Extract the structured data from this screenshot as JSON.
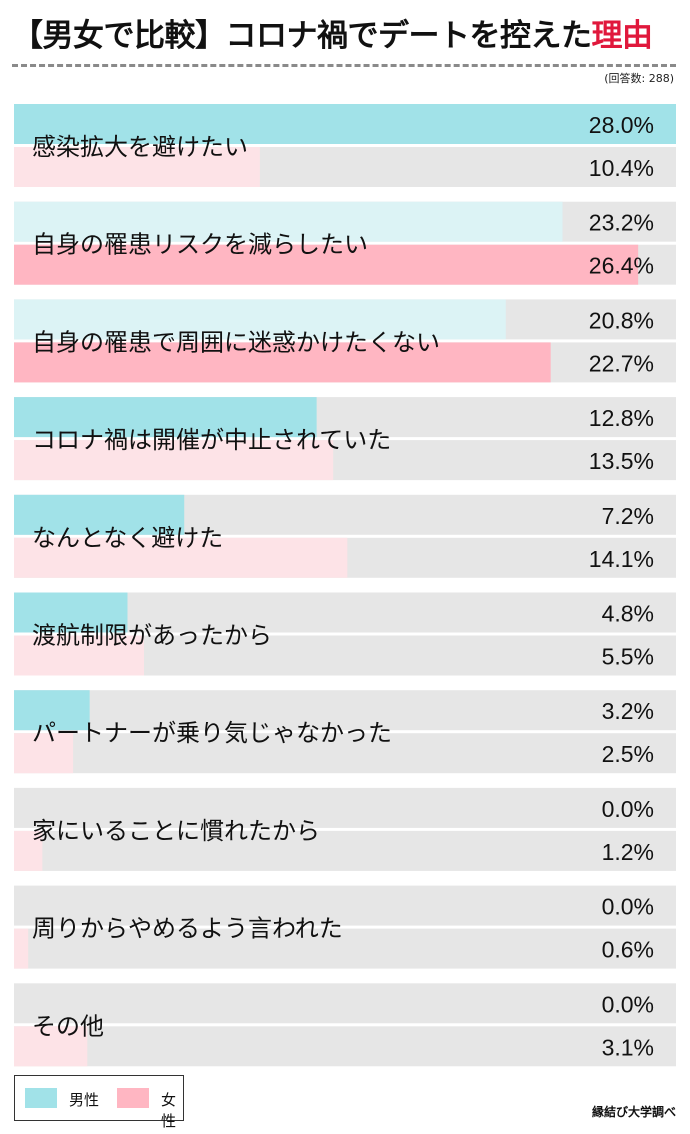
{
  "header": {
    "title_main": "【男女で比較】コロナ禍でデートを控えた",
    "title_highlight": "理由",
    "respondents": "(回答数: 288)"
  },
  "colors": {
    "male": "#a1e2e8",
    "female": "#ffb6c2",
    "male_pale": "#dcf3f5",
    "female_pale": "#fde3e7",
    "track": "#e6e6e6",
    "highlight": "#e0183c"
  },
  "legend": {
    "male": "男性",
    "female": "女性"
  },
  "source": "縁結び大学調べ",
  "chart_data": {
    "type": "bar",
    "orientation": "horizontal",
    "unit": "%",
    "xlim": [
      0,
      28
    ],
    "categories": [
      "感染拡大を避けたい",
      "自身の罹患リスクを減らしたい",
      "自身の罹患で周囲に迷惑かけたくない",
      "コロナ禍は開催が中止されていた",
      "なんとなく避けた",
      "渡航制限があったから",
      "パートナーが乗り気じゃなかった",
      "家にいることに慣れたから",
      "周りからやめるよう言われた",
      "その他"
    ],
    "series": [
      {
        "name": "男性",
        "values": [
          28.0,
          23.2,
          20.8,
          12.8,
          7.2,
          4.8,
          3.2,
          0.0,
          0.0,
          0.0
        ],
        "labels": [
          "28.0%",
          "23.2%",
          "20.8%",
          "12.8%",
          "7.2%",
          "4.8%",
          "3.2%",
          "0.0%",
          "0.0%",
          "0.0%"
        ]
      },
      {
        "name": "女性",
        "values": [
          10.4,
          26.4,
          22.7,
          13.5,
          14.1,
          5.5,
          2.5,
          1.2,
          0.6,
          3.1
        ],
        "labels": [
          "10.4%",
          "26.4%",
          "22.7%",
          "13.5%",
          "14.1%",
          "5.5%",
          "2.5%",
          "1.2%",
          "0.6%",
          "3.1%"
        ]
      }
    ],
    "highlighted_series": [
      0,
      1,
      1,
      0,
      0,
      0,
      0,
      0,
      0,
      0
    ],
    "legend_position": "bottom-left",
    "grid": false
  }
}
